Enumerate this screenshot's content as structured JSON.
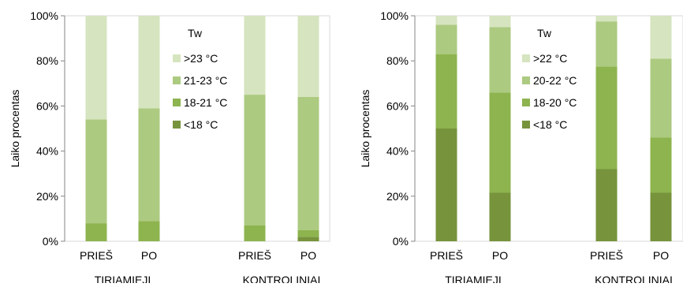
{
  "chart_data": [
    {
      "type": "bar",
      "stacked": true,
      "title": "",
      "xlabel": "",
      "ylabel": "Laiko procentas",
      "ylim": [
        0,
        100
      ],
      "yticks": [
        "0%",
        "20%",
        "40%",
        "60%",
        "80%",
        "100%"
      ],
      "groups": [
        {
          "label": "TIRIAMIEJI",
          "categories": [
            "PRIEŠ",
            "PO"
          ]
        },
        {
          "label": "KONTROLINIAI",
          "categories": [
            "PRIEŠ",
            "PO"
          ]
        }
      ],
      "categories": [
        "PRIEŠ",
        "PO",
        "PRIEŠ",
        "PO"
      ],
      "legend_title": "Tw",
      "legend_position": "inside-middle",
      "series": [
        {
          "name": "<18 °C",
          "color": "#77933c",
          "values": [
            0,
            0,
            0,
            2
          ]
        },
        {
          "name": "18-21 °C",
          "color": "#8db44e",
          "values": [
            8,
            9,
            7,
            3
          ]
        },
        {
          "name": "21-23 °C",
          "color": "#acca80",
          "values": [
            46,
            50,
            58,
            59
          ]
        },
        {
          "name": ">23 °C",
          "color": "#d6e4bf",
          "values": [
            46,
            41,
            35,
            36
          ]
        }
      ]
    },
    {
      "type": "bar",
      "stacked": true,
      "title": "",
      "xlabel": "",
      "ylabel": "Laiko procentas",
      "ylim": [
        0,
        100
      ],
      "yticks": [
        "0%",
        "20%",
        "40%",
        "60%",
        "80%",
        "100%"
      ],
      "groups": [
        {
          "label": "TIRIAMIEJI",
          "categories": [
            "PRIEŠ",
            "PO"
          ]
        },
        {
          "label": "KONTROLINIAI",
          "categories": [
            "PRIEŠ",
            "PO"
          ]
        }
      ],
      "categories": [
        "PRIEŠ",
        "PO",
        "PRIEŠ",
        "PO"
      ],
      "legend_title": "Tw",
      "legend_position": "inside-middle",
      "series": [
        {
          "name": "<18 °C",
          "color": "#77933c",
          "values": [
            50,
            21.5,
            32,
            21.5
          ]
        },
        {
          "name": "18-20 °C",
          "color": "#8db44e",
          "values": [
            33,
            44.5,
            45.5,
            24.5
          ]
        },
        {
          "name": "20-22 °C",
          "color": "#acca80",
          "values": [
            13,
            29,
            20,
            35
          ]
        },
        {
          "name": ">22 °C",
          "color": "#d6e4bf",
          "values": [
            4,
            5,
            2.5,
            19
          ]
        }
      ]
    }
  ]
}
